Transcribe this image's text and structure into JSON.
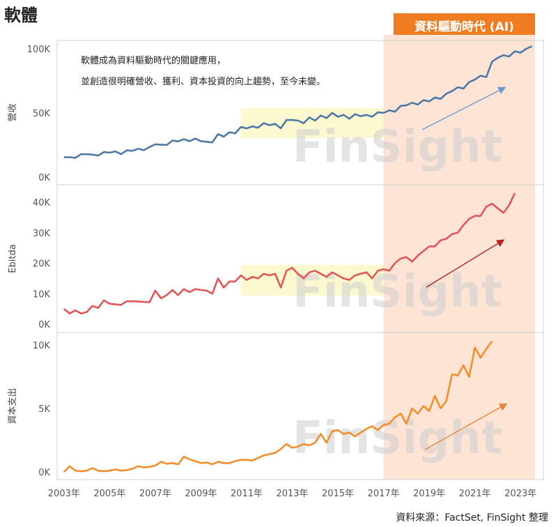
{
  "page_title": "軟體",
  "highlight_label": "資料驅動時代 (AI)",
  "annotation": [
    "軟體成為資料驅動時代的關鍵應用，",
    "並創造很明確營收、獲利、資本投資的向上趨勢，至今未變。"
  ],
  "source": "資料來源：FactSet, FinSight 整理",
  "watermark": "FinSight",
  "colors": {
    "revenue": "#4e79a7",
    "ebitda": "#e15759",
    "capex": "#f28e2b",
    "highlight": "#fde4d4",
    "label_bg": "#f07c22",
    "band": "#fbf7c8"
  },
  "chart_data": [
    {
      "type": "line",
      "ylabel": "營收",
      "yticks": [
        0,
        50000,
        100000
      ],
      "ytick_labels": [
        "0K",
        "50K",
        "100K"
      ],
      "ylim": [
        0,
        105000
      ],
      "grid": false,
      "xlim": [
        2002.7,
        2024
      ],
      "x_start": 2003.0,
      "x_step": 0.25,
      "values": [
        15500,
        15500,
        15000,
        17800,
        17800,
        17500,
        16800,
        19500,
        19000,
        20000,
        17800,
        20800,
        20500,
        22000,
        21000,
        23500,
        25500,
        25200,
        25000,
        28500,
        27800,
        29500,
        28000,
        30000,
        28000,
        27500,
        27000,
        33500,
        31500,
        35000,
        34000,
        39000,
        38000,
        39500,
        38500,
        42000,
        40500,
        41500,
        38000,
        44500,
        44500,
        44000,
        42000,
        46500,
        44000,
        48000,
        46000,
        50000,
        47000,
        48500,
        45500,
        49000,
        47500,
        48500,
        47000,
        50500,
        50000,
        52000,
        51000,
        55500,
        56000,
        58000,
        56500,
        60000,
        59000,
        62000,
        61000,
        65000,
        67000,
        70000,
        69000,
        74000,
        76000,
        79000,
        78000,
        90000,
        93000,
        95000,
        94000,
        98000,
        97000,
        100000,
        102000
      ]
    },
    {
      "type": "line",
      "ylabel": "Ebitda",
      "yticks": [
        0,
        10000,
        20000,
        30000,
        40000
      ],
      "ytick_labels": [
        "0K",
        "10K",
        "20K",
        "30K",
        "40K"
      ],
      "ylim": [
        -1500,
        45000
      ],
      "grid": false,
      "xlim": [
        2002.7,
        2024
      ],
      "x_start": 2003.0,
      "x_step": 0.25,
      "values": [
        5000,
        3500,
        4500,
        3500,
        4000,
        6000,
        5300,
        7800,
        6700,
        6500,
        6300,
        7500,
        7500,
        7400,
        7300,
        7200,
        11000,
        8500,
        9500,
        11200,
        9500,
        11500,
        10500,
        11500,
        11200,
        11000,
        10000,
        15000,
        12000,
        14000,
        14000,
        16000,
        14500,
        15500,
        15000,
        16500,
        16000,
        16500,
        12000,
        17500,
        18500,
        16500,
        15000,
        17000,
        17500,
        16500,
        15500,
        17000,
        16000,
        15000,
        14500,
        16000,
        16500,
        17000,
        15000,
        17500,
        18000,
        17500,
        20000,
        21500,
        22000,
        20500,
        22500,
        24000,
        25500,
        25500,
        27500,
        28000,
        29500,
        30000,
        32500,
        34500,
        35500,
        35500,
        38500,
        39500,
        38000,
        36500,
        39000,
        43000
      ]
    },
    {
      "type": "line",
      "ylabel": "資本支出",
      "yticks": [
        0,
        5000,
        10000
      ],
      "ytick_labels": [
        "0K",
        "5K",
        "10K"
      ],
      "ylim": [
        -400,
        10800
      ],
      "grid": false,
      "xlim": [
        2002.7,
        2024
      ],
      "x_start": 2003.0,
      "x_step": 0.25,
      "values": [
        0,
        450,
        100,
        50,
        100,
        300,
        100,
        50,
        100,
        200,
        100,
        150,
        250,
        450,
        350,
        400,
        500,
        800,
        650,
        700,
        600,
        1200,
        1000,
        850,
        700,
        750,
        600,
        800,
        700,
        700,
        850,
        950,
        950,
        900,
        1100,
        1300,
        1400,
        1500,
        1800,
        2200,
        1900,
        2000,
        2200,
        2100,
        2300,
        3000,
        2300,
        3200,
        3300,
        3000,
        3100,
        2800,
        3100,
        3400,
        3600,
        3300,
        3700,
        3800,
        4300,
        4600,
        3800,
        5000,
        4600,
        5200,
        4800,
        6000,
        5000,
        5600,
        7700,
        7600,
        8400,
        7500,
        9800,
        9000,
        9700,
        10300
      ]
    }
  ],
  "xaxis": {
    "ticks": [
      2003,
      2005,
      2007,
      2009,
      2011,
      2013,
      2015,
      2017,
      2019,
      2021,
      2023
    ],
    "labels": [
      "2003年",
      "2005年",
      "2007年",
      "2009年",
      "2011年",
      "2013年",
      "2015年",
      "2017年",
      "2019年",
      "2021年",
      "2023年"
    ]
  },
  "highlight_range": [
    2017.0,
    2024.0
  ],
  "band_range": [
    2010.75,
    2017.0
  ]
}
